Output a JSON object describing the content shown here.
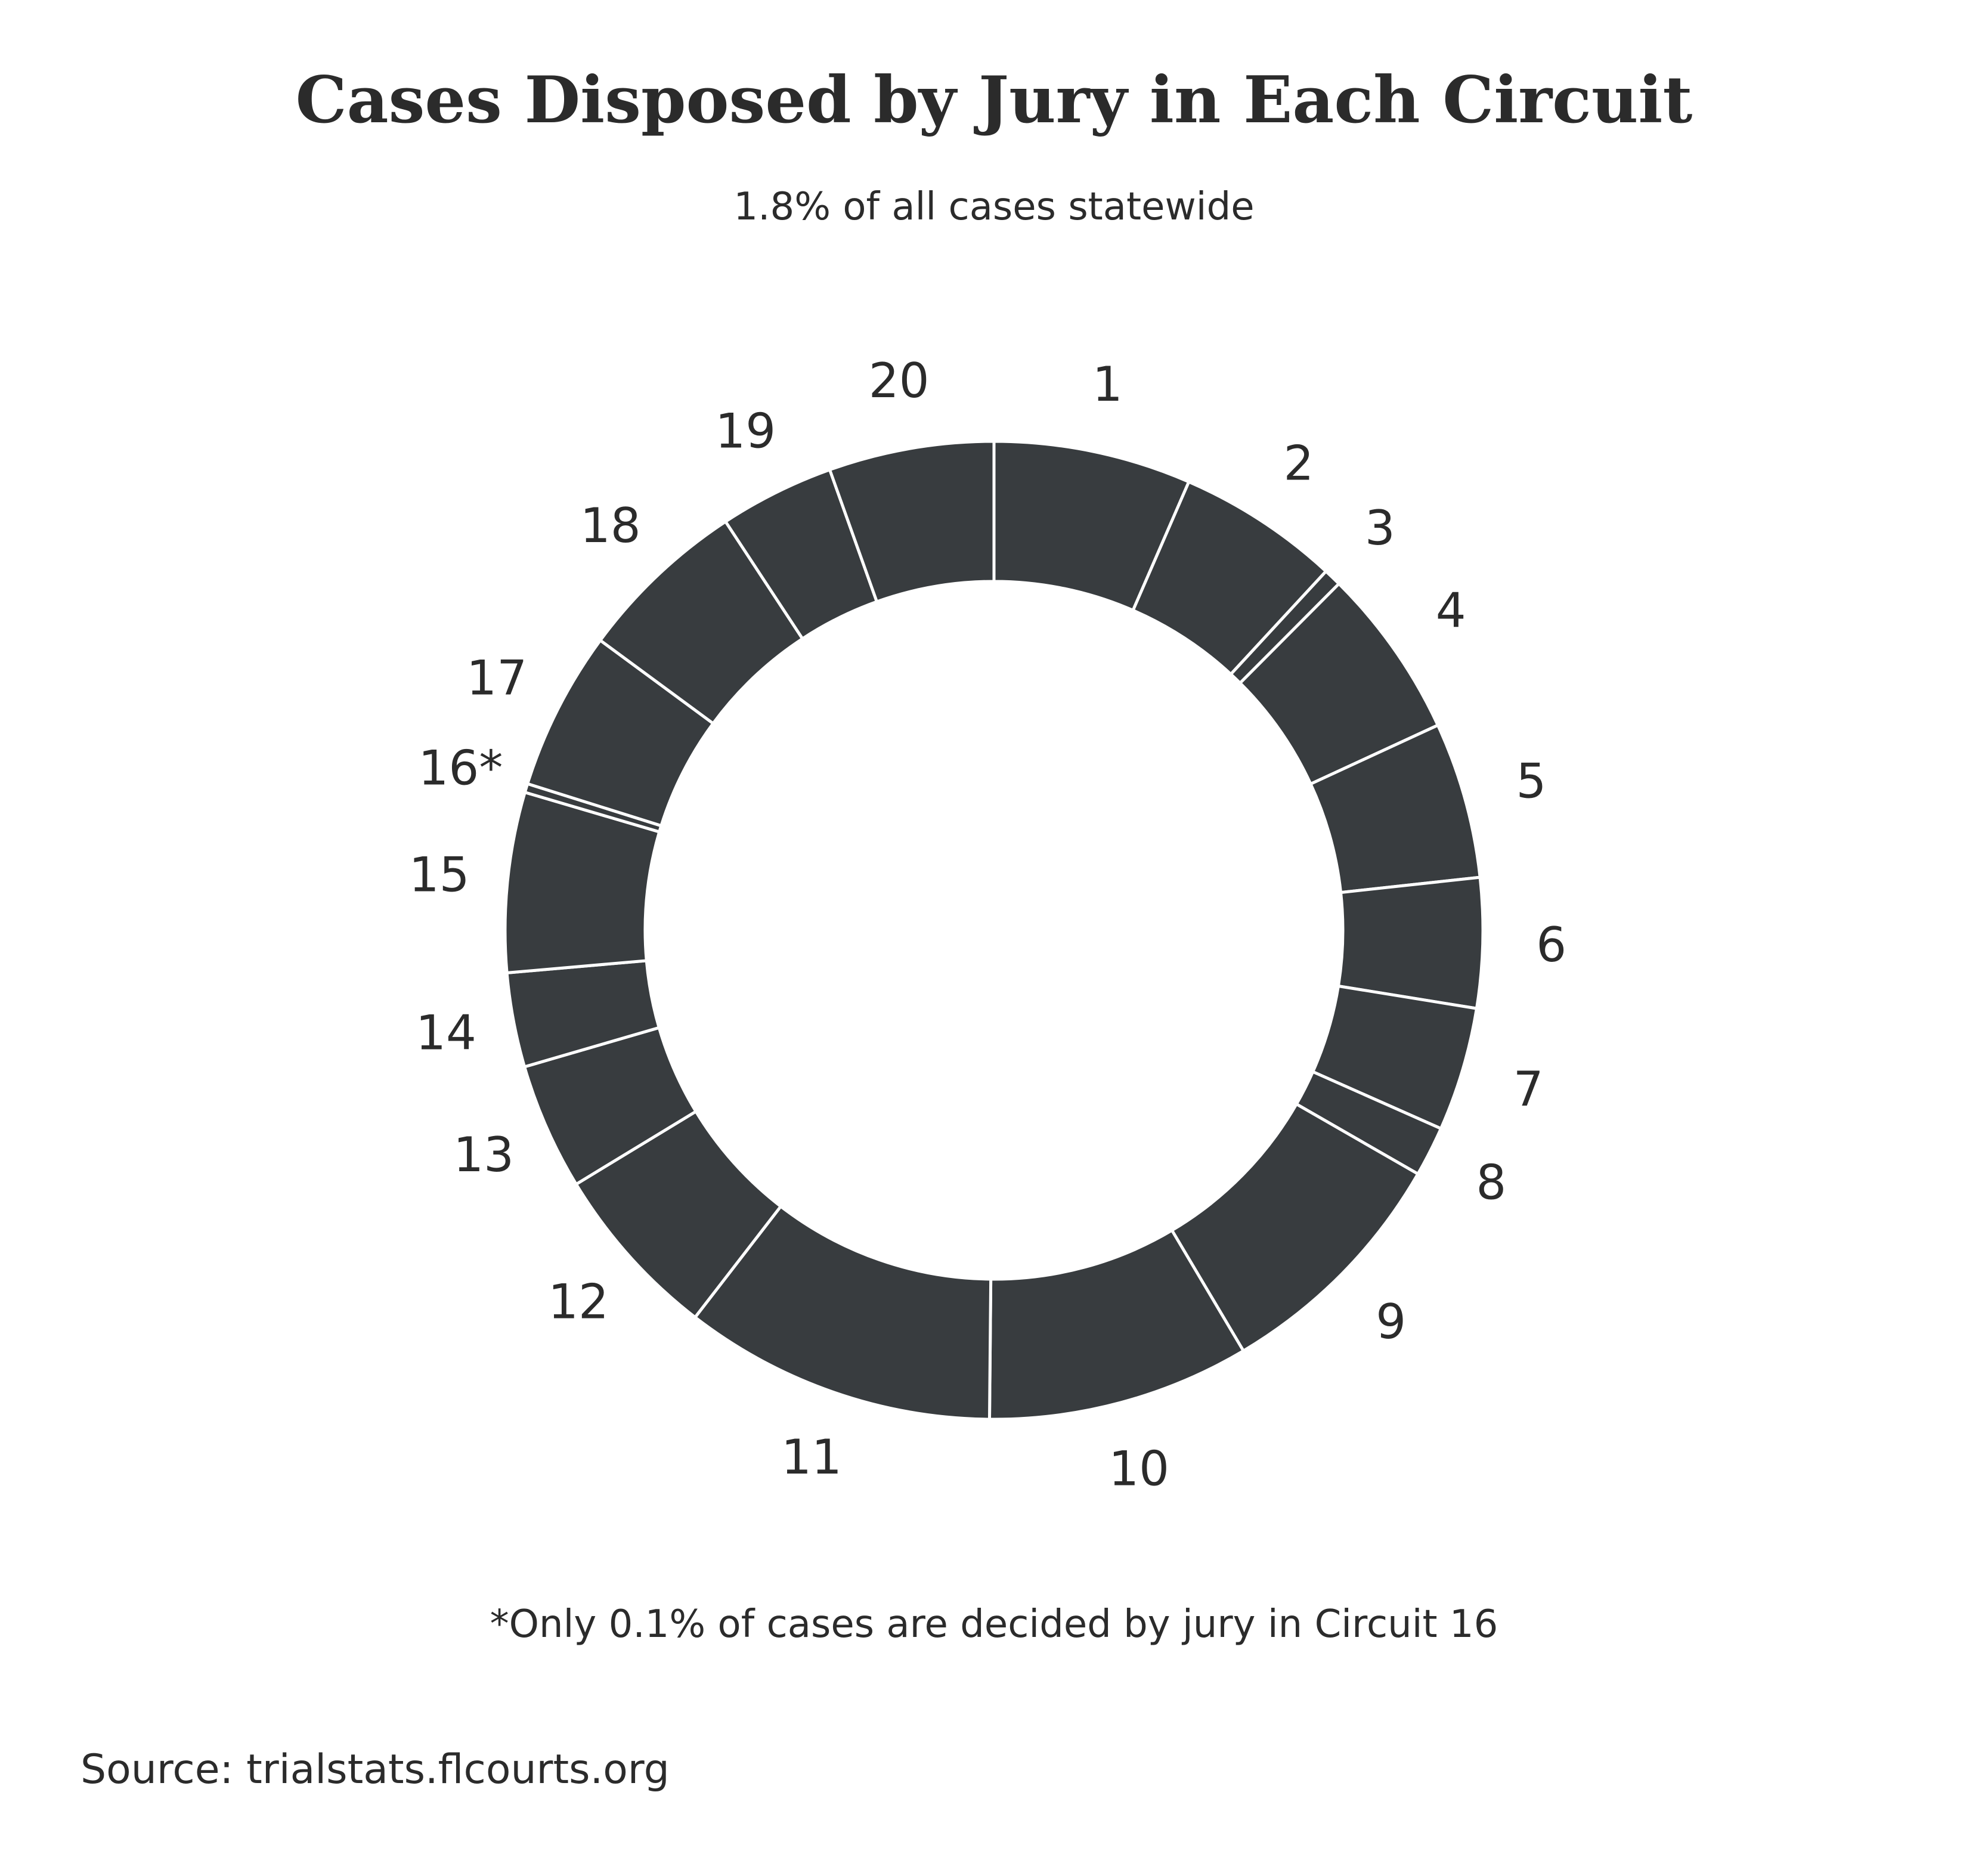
{
  "chart_data": {
    "type": "pie",
    "title": "Cases Disposed by Jury in Each Circuit",
    "subtitle": "1.8% of all cases statewide",
    "categories": [
      "1",
      "2",
      "3",
      "4",
      "5",
      "6",
      "7",
      "8",
      "9",
      "10",
      "11",
      "12",
      "13",
      "14",
      "15",
      "16*",
      "17",
      "18",
      "19",
      "20"
    ],
    "values": [
      6.7,
      5.5,
      0.6,
      5.8,
      5.3,
      4.4,
      4.2,
      1.7,
      8.4,
      8.9,
      10.6,
      6.0,
      4.3,
      3.2,
      6.1,
      0.3,
      5.4,
      5.8,
      3.9,
      5.6
    ],
    "footnote": "*Only 0.1% of cases are decided by jury in Circuit 16",
    "source": "Source: trialstats.flcourts.org",
    "legend": "none",
    "colors": {
      "segment": "#383c3f",
      "separator": "#ffffff",
      "text": "#2b2b2b"
    }
  }
}
